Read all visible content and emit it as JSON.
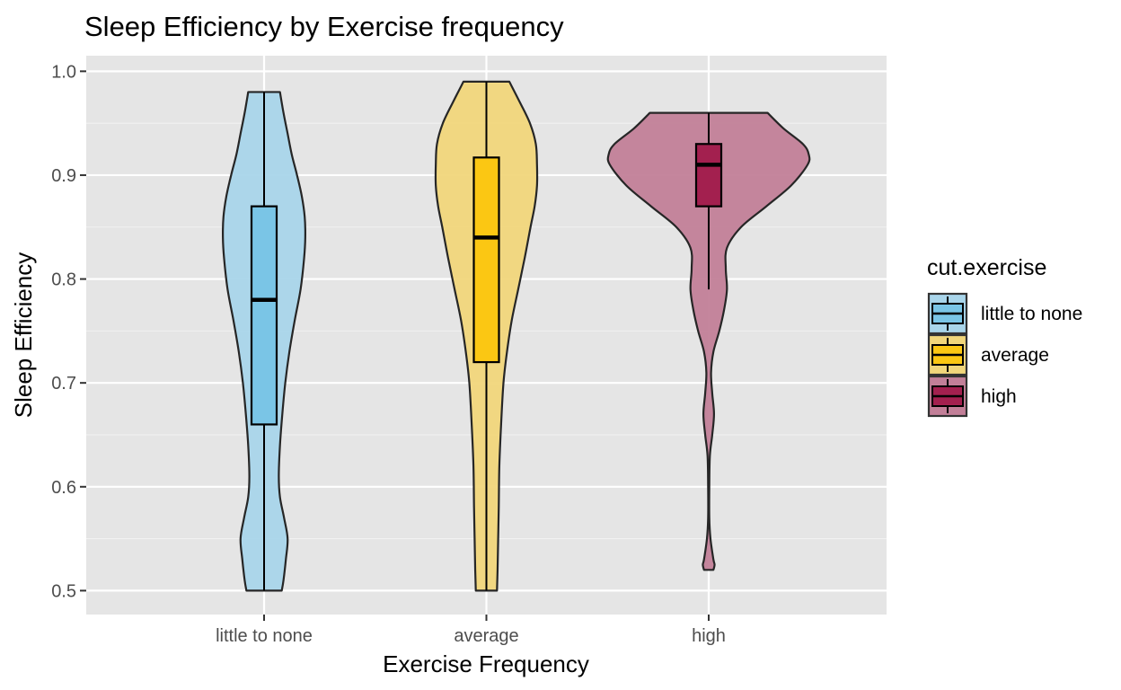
{
  "chart_data": {
    "type": "violin",
    "title": "Sleep Efficiency by Exercise frequency",
    "xlabel": "Exercise Frequency",
    "ylabel": "Sleep Efficiency",
    "categories": [
      "little to none",
      "average",
      "high"
    ],
    "ylim": [
      0.477,
      1.015
    ],
    "yticks": [
      "0.5",
      "0.6",
      "0.7",
      "0.8",
      "0.9",
      "1.0"
    ],
    "grid": true,
    "legend": {
      "title": "cut.exercise",
      "position": "right",
      "entries": [
        "little to none",
        "average",
        "high"
      ]
    },
    "series": [
      {
        "name": "little to none",
        "violin_color": "#a9d5ea",
        "box_color": "#7ac5e6",
        "box": {
          "min": 0.5,
          "q1": 0.66,
          "median": 0.78,
          "q3": 0.87,
          "max": 0.98
        },
        "density": [
          [
            0.5,
            0.3
          ],
          [
            0.51,
            0.33
          ],
          [
            0.53,
            0.37
          ],
          [
            0.55,
            0.4
          ],
          [
            0.57,
            0.34
          ],
          [
            0.59,
            0.27
          ],
          [
            0.61,
            0.25
          ],
          [
            0.64,
            0.27
          ],
          [
            0.67,
            0.31
          ],
          [
            0.7,
            0.36
          ],
          [
            0.73,
            0.43
          ],
          [
            0.76,
            0.52
          ],
          [
            0.79,
            0.62
          ],
          [
            0.82,
            0.68
          ],
          [
            0.84,
            0.7
          ],
          [
            0.86,
            0.69
          ],
          [
            0.88,
            0.64
          ],
          [
            0.9,
            0.56
          ],
          [
            0.92,
            0.47
          ],
          [
            0.94,
            0.4
          ],
          [
            0.96,
            0.33
          ],
          [
            0.98,
            0.27
          ]
        ]
      },
      {
        "name": "average",
        "violin_color": "#f1d67b",
        "box_color": "#fbc713",
        "box": {
          "min": 0.5,
          "q1": 0.72,
          "median": 0.84,
          "q3": 0.917,
          "max": 0.99
        },
        "density": [
          [
            0.5,
            0.18
          ],
          [
            0.52,
            0.19
          ],
          [
            0.55,
            0.2
          ],
          [
            0.58,
            0.21
          ],
          [
            0.62,
            0.22
          ],
          [
            0.66,
            0.25
          ],
          [
            0.7,
            0.29
          ],
          [
            0.73,
            0.35
          ],
          [
            0.76,
            0.43
          ],
          [
            0.79,
            0.54
          ],
          [
            0.82,
            0.65
          ],
          [
            0.85,
            0.75
          ],
          [
            0.87,
            0.82
          ],
          [
            0.89,
            0.86
          ],
          [
            0.91,
            0.86
          ],
          [
            0.93,
            0.84
          ],
          [
            0.95,
            0.74
          ],
          [
            0.97,
            0.57
          ],
          [
            0.99,
            0.39
          ]
        ]
      },
      {
        "name": "high",
        "violin_color": "#c27f98",
        "box_color": "#a3204f",
        "box": {
          "min": 0.79,
          "q1": 0.87,
          "median": 0.91,
          "q3": 0.93,
          "max": 0.96
        },
        "density": [
          [
            0.52,
            0.08
          ],
          [
            0.525,
            0.1
          ],
          [
            0.53,
            0.08
          ],
          [
            0.55,
            0.03
          ],
          [
            0.57,
            0.01
          ],
          [
            0.6,
            0.01
          ],
          [
            0.63,
            0.02
          ],
          [
            0.65,
            0.06
          ],
          [
            0.67,
            0.09
          ],
          [
            0.69,
            0.06
          ],
          [
            0.71,
            0.04
          ],
          [
            0.73,
            0.08
          ],
          [
            0.75,
            0.18
          ],
          [
            0.77,
            0.26
          ],
          [
            0.79,
            0.31
          ],
          [
            0.81,
            0.29
          ],
          [
            0.83,
            0.31
          ],
          [
            0.85,
            0.55
          ],
          [
            0.87,
            0.98
          ],
          [
            0.89,
            1.4
          ],
          [
            0.91,
            1.68
          ],
          [
            0.92,
            1.7
          ],
          [
            0.93,
            1.6
          ],
          [
            0.945,
            1.27
          ],
          [
            0.96,
            1.0
          ]
        ]
      }
    ]
  }
}
